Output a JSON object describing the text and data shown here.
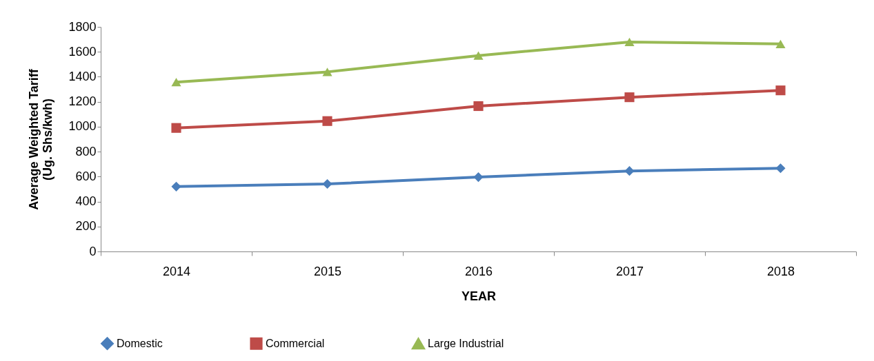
{
  "chart_data": {
    "type": "line",
    "xlabel": "YEAR",
    "ylabel": "Average Weighted Tariff\n(Ug. Shs/kwh)",
    "categories": [
      "2014",
      "2015",
      "2016",
      "2017",
      "2018"
    ],
    "series": [
      {
        "name": "Domestic",
        "color": "#4a7ebb",
        "marker": "diamond",
        "values": [
          520,
          541,
          596,
          645,
          667
        ]
      },
      {
        "name": "Commercial",
        "color": "#be4b48",
        "marker": "square",
        "values": [
          990,
          1045,
          1165,
          1236,
          1291
        ]
      },
      {
        "name": "Large Industrial",
        "color": "#98b954",
        "marker": "triangle",
        "values": [
          1357,
          1439,
          1570,
          1679,
          1663
        ]
      }
    ],
    "ylim": [
      0,
      1800
    ],
    "yticks": [
      0,
      200,
      400,
      600,
      800,
      1000,
      1200,
      1400,
      1600,
      1800
    ],
    "legend": "bottom",
    "grid": false,
    "line_style": "solid"
  }
}
